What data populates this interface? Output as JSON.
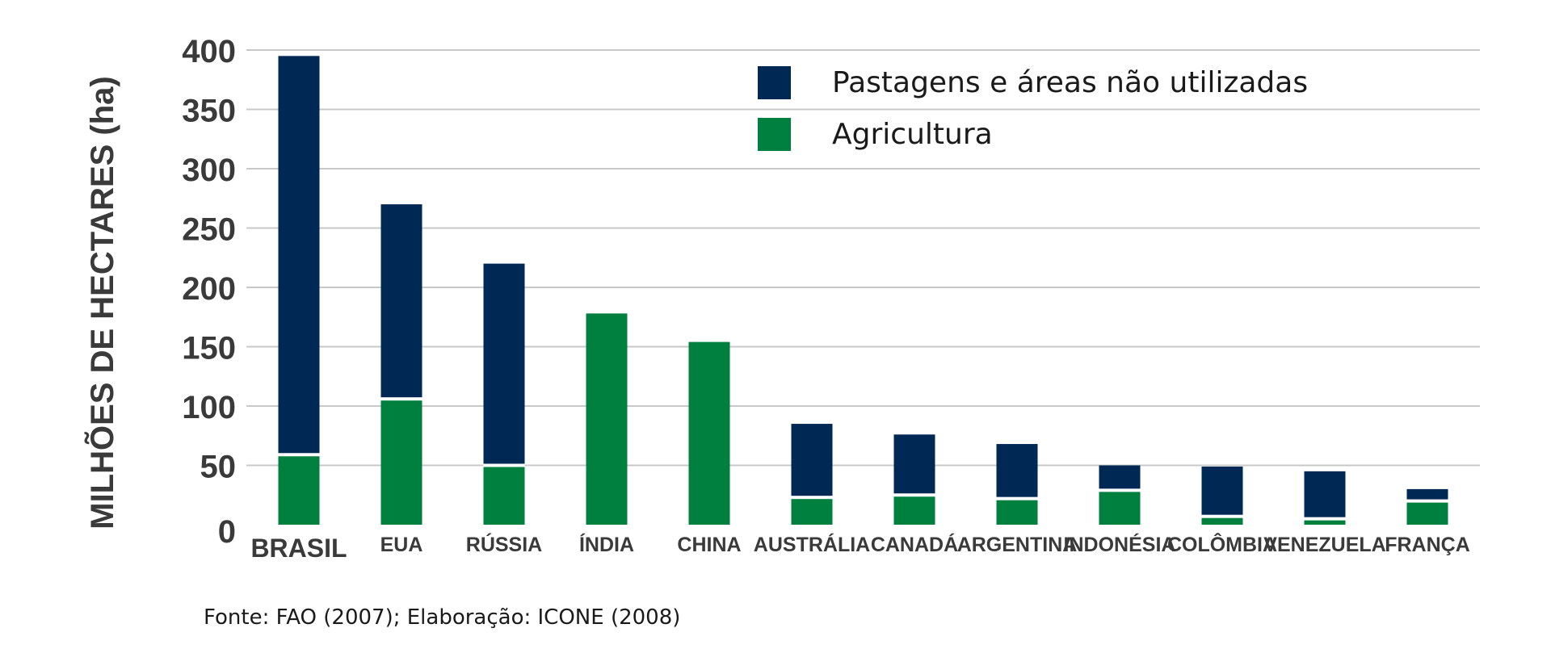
{
  "chart_data": {
    "type": "bar",
    "stacked": true,
    "categories": [
      "BRASIL",
      "EUA",
      "RÚSSIA",
      "ÍNDIA",
      "CHINA",
      "AUSTRÁLIA",
      "CANADÁ",
      "ARGENTINA",
      "INDONÉSIA",
      "COLÔMBIA",
      "VENEZUELA",
      "FRANÇA"
    ],
    "series": [
      {
        "name": "Agricultura",
        "color": "#00803f",
        "values": [
          59,
          106,
          50,
          178,
          154,
          23,
          25,
          22,
          29,
          7,
          5,
          20
        ]
      },
      {
        "name": "Pastagens e áreas não utilizadas",
        "color": "#002855",
        "values": [
          336,
          164,
          170,
          0,
          0,
          62,
          51,
          46,
          21,
          42,
          40,
          10
        ]
      }
    ],
    "legend_order": [
      1,
      0
    ],
    "title": "",
    "xlabel": "",
    "ylabel": "MILHÕES DE HECTARES (ha)",
    "ylim": [
      0,
      400
    ],
    "yticks": [
      0,
      50,
      100,
      150,
      200,
      250,
      300,
      350,
      400
    ],
    "grid": true,
    "legend_position": "top-right"
  },
  "source": "Fonte: FAO (2007); Elaboração: ICONE (2008)"
}
